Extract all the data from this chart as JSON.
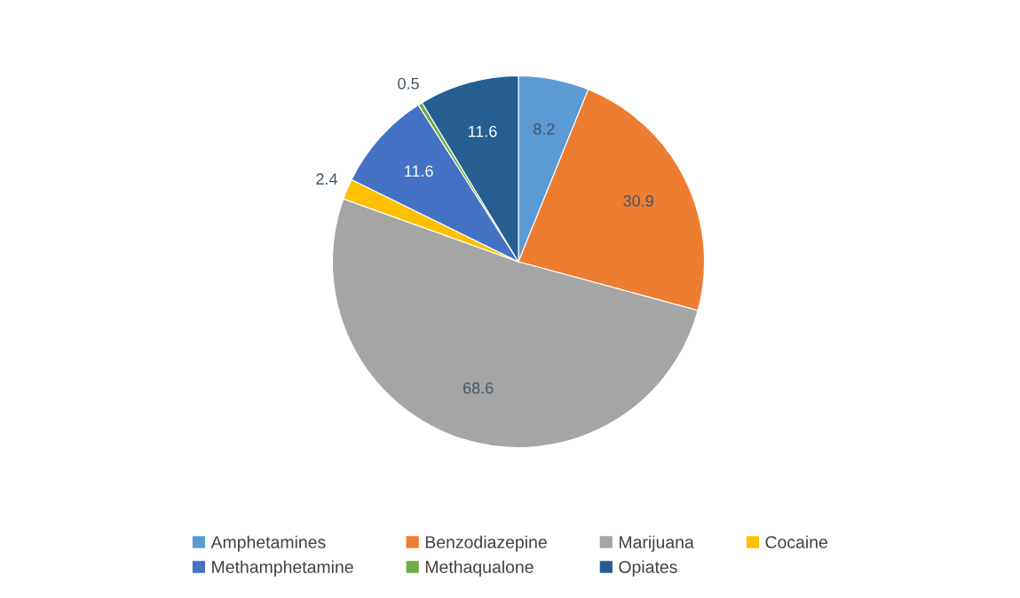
{
  "chart_data": {
    "type": "pie",
    "categories": [
      "Amphetamines",
      "Benzodiazepine",
      "Marijuana",
      "Cocaine",
      "Methamphetamine",
      "Methaqualone",
      "Opiates"
    ],
    "values": [
      8.2,
      30.9,
      68.6,
      2.4,
      11.6,
      0.5,
      11.6
    ],
    "colors": [
      "#5b9bd5",
      "#ed7d31",
      "#a5a5a5",
      "#ffc000",
      "#4472c4",
      "#70ad47",
      "#255e91"
    ],
    "data_labels": true,
    "legend": "bottom"
  }
}
